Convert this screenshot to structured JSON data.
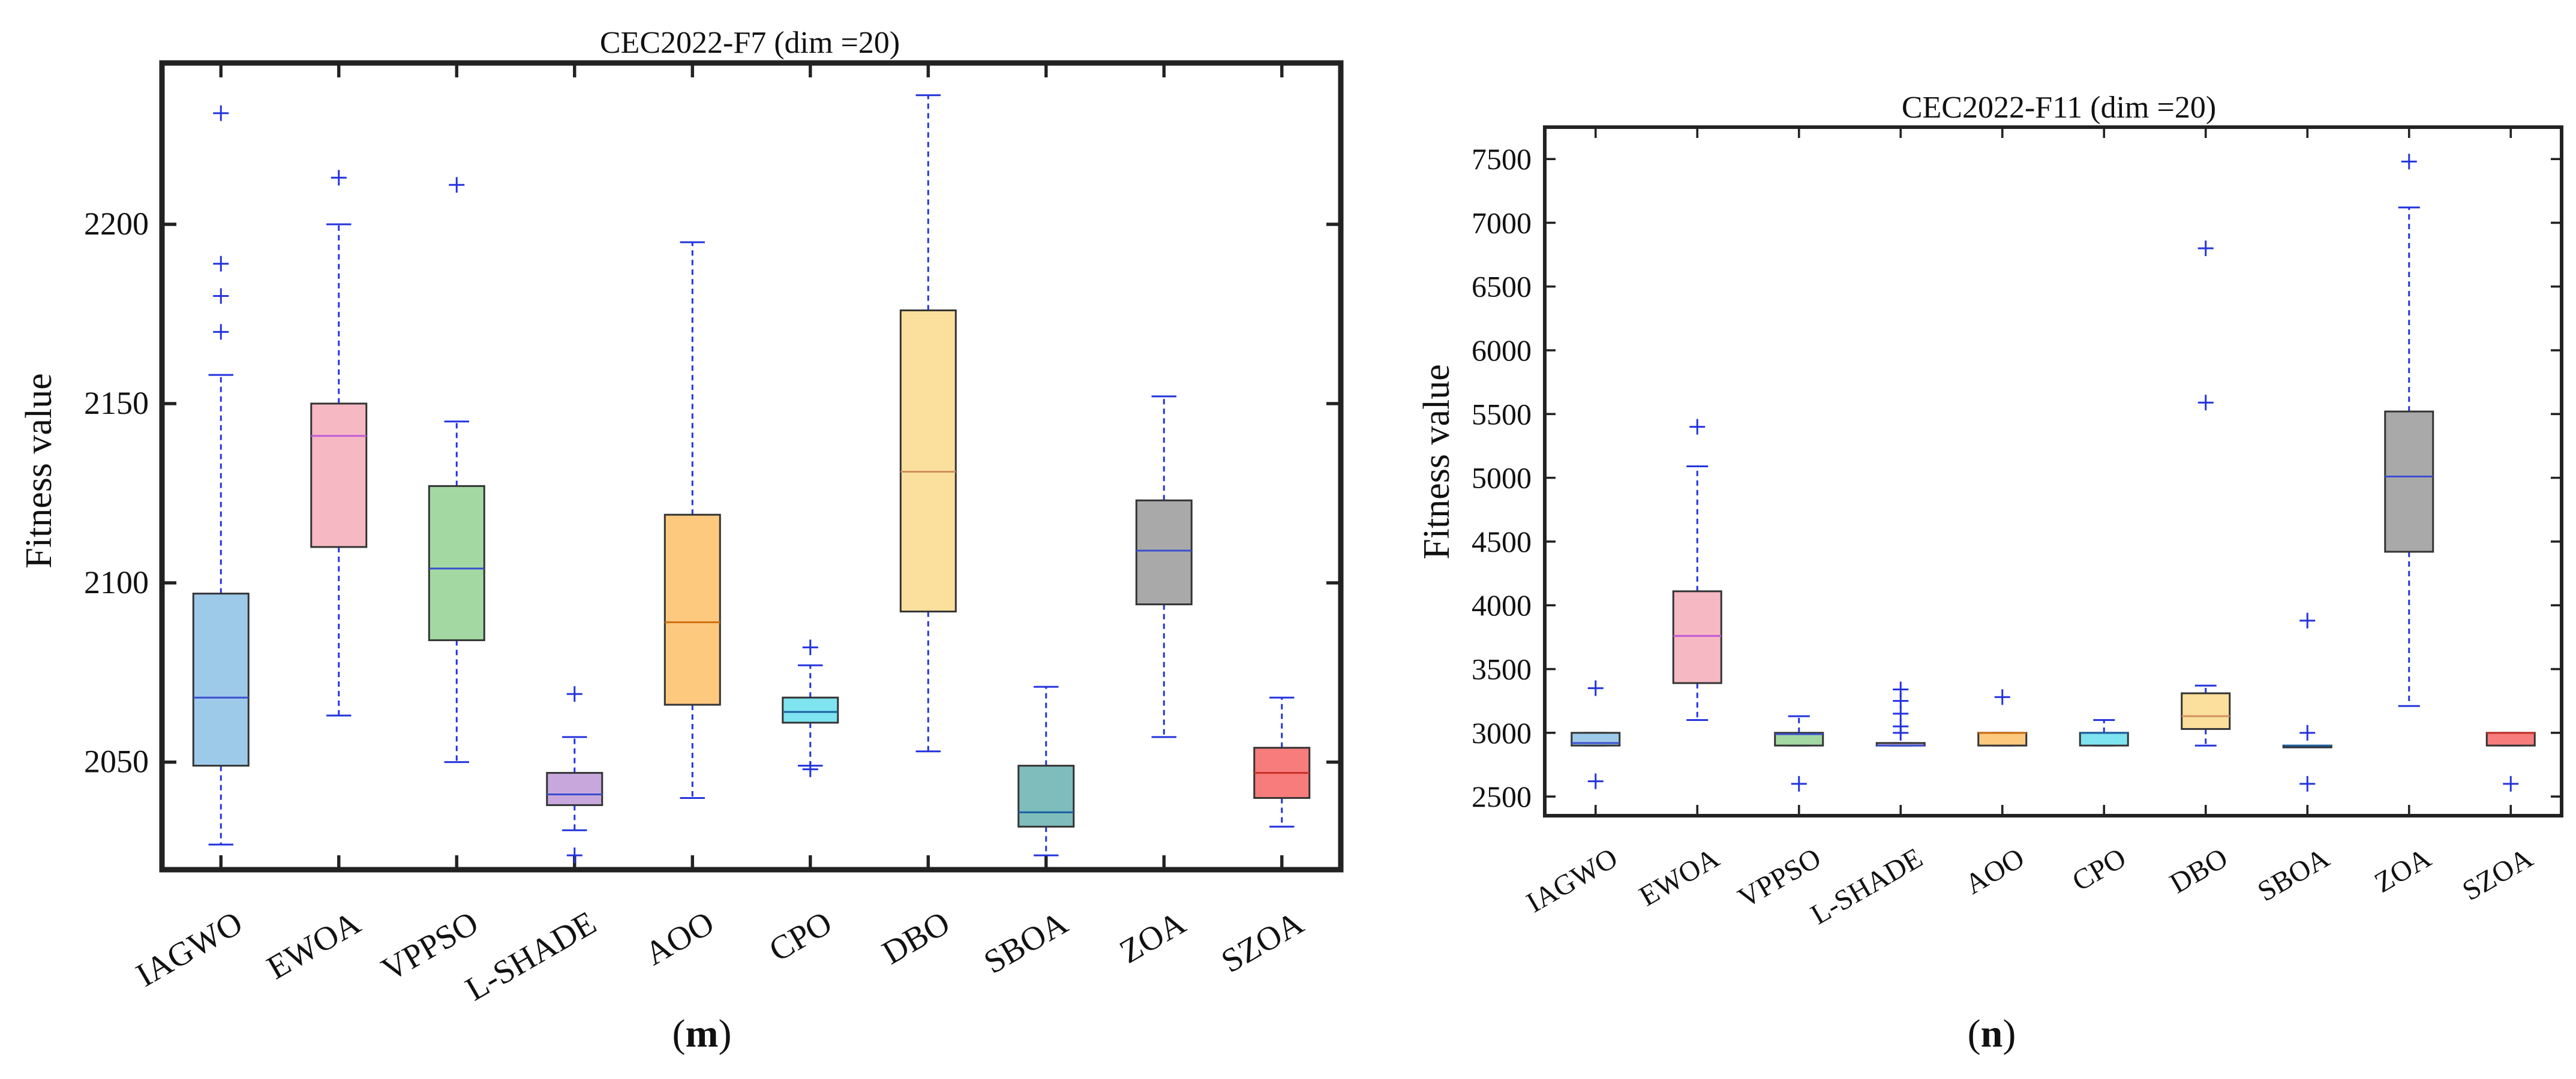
{
  "chart_data": [
    {
      "type": "box",
      "panel_label": "m",
      "title": "CEC2022-F7 (dim =20)",
      "xlabel": "",
      "ylabel": "Fitness value",
      "ylim": [
        2020,
        2245
      ],
      "yticks": [
        2050,
        2100,
        2150,
        2200
      ],
      "grid": false,
      "categories": [
        "IAGWO",
        "EWOA",
        "VPPSO",
        "L-SHADE",
        "AOO",
        "CPO",
        "DBO",
        "SBOA",
        "ZOA",
        "SZOA"
      ],
      "colors": [
        "#9ecae9",
        "#f6b8c2",
        "#a3d8a2",
        "#c8a8dc",
        "#fcc97f",
        "#7fe3f0",
        "#fbdf9c",
        "#7fbdbd",
        "#a9a9a9",
        "#f77c7c"
      ],
      "median_colors": [
        "#3a4ecf",
        "#c05ad8",
        "#3a4ecf",
        "#3a4ecf",
        "#d07010",
        "#1a5fa0",
        "#d09060",
        "#1a5fa0",
        "#3a4ecf",
        "#c8302a"
      ],
      "boxes": [
        {
          "min": 2027,
          "q1": 2049,
          "median": 2068,
          "q3": 2097,
          "max": 2158,
          "outliers": [
            2170,
            2180,
            2189,
            2231
          ]
        },
        {
          "min": 2063,
          "q1": 2110,
          "median": 2141,
          "q3": 2150,
          "max": 2200,
          "outliers": [
            2213
          ]
        },
        {
          "min": 2050,
          "q1": 2084,
          "median": 2104,
          "q3": 2127,
          "max": 2145,
          "outliers": [
            2211
          ]
        },
        {
          "min": 2031,
          "q1": 2038,
          "median": 2041,
          "q3": 2047,
          "max": 2057,
          "outliers": [
            2024,
            2069
          ]
        },
        {
          "min": 2040,
          "q1": 2066,
          "median": 2089,
          "q3": 2119,
          "max": 2195,
          "outliers": []
        },
        {
          "min": 2049,
          "q1": 2061,
          "median": 2064,
          "q3": 2068,
          "max": 2077,
          "outliers": [
            2048,
            2082
          ]
        },
        {
          "min": 2053,
          "q1": 2092,
          "median": 2131,
          "q3": 2176,
          "max": 2236,
          "outliers": []
        },
        {
          "min": 2024,
          "q1": 2032,
          "median": 2036,
          "q3": 2049,
          "max": 2071,
          "outliers": []
        },
        {
          "min": 2057,
          "q1": 2094,
          "median": 2109,
          "q3": 2123,
          "max": 2152,
          "outliers": []
        },
        {
          "min": 2032,
          "q1": 2040,
          "median": 2047,
          "q3": 2054,
          "max": 2068,
          "outliers": []
        }
      ]
    },
    {
      "type": "box",
      "panel_label": "n",
      "title": "CEC2022-F11 (dim =20)",
      "xlabel": "",
      "ylabel": "Fitness value",
      "ylim": [
        2350,
        7750
      ],
      "yticks": [
        2500,
        3000,
        3500,
        4000,
        4500,
        5000,
        5500,
        6000,
        6500,
        7000,
        7500
      ],
      "grid": false,
      "categories": [
        "IAGWO",
        "EWOA",
        "VPPSO",
        "L-SHADE",
        "AOO",
        "CPO",
        "DBO",
        "SBOA",
        "ZOA",
        "SZOA"
      ],
      "colors": [
        "#9ecae9",
        "#f6b8c2",
        "#a3d8a2",
        "#c8a8dc",
        "#fcc97f",
        "#7fe3f0",
        "#fbdf9c",
        "#7fbdbd",
        "#a9a9a9",
        "#f77c7c"
      ],
      "median_colors": [
        "#3a4ecf",
        "#c05ad8",
        "#3a4ecf",
        "#3a4ecf",
        "#d07010",
        "#1a5fa0",
        "#d09060",
        "#1a5fa0",
        "#3a4ecf",
        "#c8302a"
      ],
      "boxes": [
        {
          "min": 2900,
          "q1": 2900,
          "median": 2920,
          "q3": 3000,
          "max": 3000,
          "outliers": [
            2620,
            3350
          ]
        },
        {
          "min": 3100,
          "q1": 3390,
          "median": 3760,
          "q3": 4110,
          "max": 5090,
          "outliers": [
            5400
          ]
        },
        {
          "min": 2900,
          "q1": 2900,
          "median": 2990,
          "q3": 3000,
          "max": 3130,
          "outliers": [
            2600
          ]
        },
        {
          "min": 2900,
          "q1": 2900,
          "median": 2900,
          "q3": 2920,
          "max": 2920,
          "outliers": [
            3000,
            3050,
            3150,
            3250,
            3340
          ]
        },
        {
          "min": 2900,
          "q1": 2900,
          "median": 3000,
          "q3": 3000,
          "max": 3000,
          "outliers": [
            3280
          ]
        },
        {
          "min": 2900,
          "q1": 2900,
          "median": 3000,
          "q3": 3000,
          "max": 3100,
          "outliers": []
        },
        {
          "min": 2900,
          "q1": 3030,
          "median": 3130,
          "q3": 3310,
          "max": 3370,
          "outliers": [
            5590,
            6800
          ]
        },
        {
          "min": 2900,
          "q1": 2900,
          "median": 2900,
          "q3": 2900,
          "max": 2900,
          "outliers": [
            2600,
            3000,
            3880
          ]
        },
        {
          "min": 3210,
          "q1": 4420,
          "median": 5010,
          "q3": 5520,
          "max": 7120,
          "outliers": [
            7480
          ]
        },
        {
          "min": 2900,
          "q1": 2900,
          "median": 3000,
          "q3": 3000,
          "max": 3000,
          "outliers": [
            2600
          ]
        }
      ]
    }
  ]
}
